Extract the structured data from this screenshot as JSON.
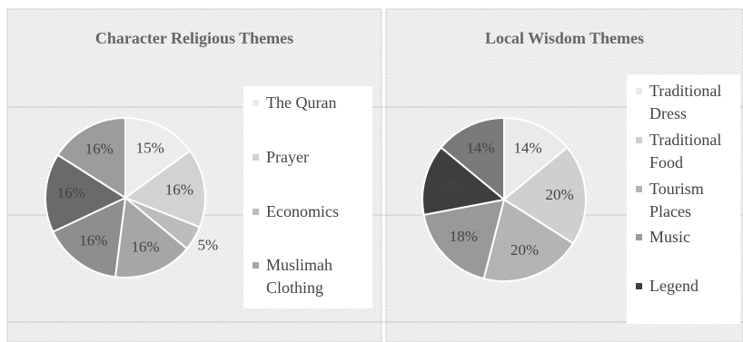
{
  "chart_data": [
    {
      "type": "pie",
      "title": "Character Religious Themes",
      "categories": [
        "The Quran",
        "Prayer",
        "Economics",
        "Muslimah Clothing",
        null,
        null,
        null
      ],
      "values": [
        15,
        16,
        5,
        16,
        16,
        16,
        16
      ],
      "value_labels": [
        "15%",
        "16%",
        "5%",
        "16%",
        "16%",
        "16%",
        "16%"
      ],
      "colors": [
        "#ececec",
        "#d2d2d2",
        "#bcbcbc",
        "#a6a6a6",
        "#8e8e8e",
        "#6a6a6a",
        "#9c9c9c"
      ]
    },
    {
      "type": "pie",
      "title": "Local Wisdom Themes",
      "categories": [
        "Traditional Dress",
        "Traditional Food",
        "Tourism Places",
        "Music",
        "Legend",
        null
      ],
      "values": [
        14,
        20,
        20,
        18,
        14,
        14
      ],
      "value_labels": [
        "14%",
        "20%",
        "20%",
        "18%",
        "14%",
        "14%"
      ],
      "colors": [
        "#eaeaea",
        "#cfcfcf",
        "#b4b4b4",
        "#999999",
        "#3e3e3e",
        "#7a7a7a"
      ]
    }
  ]
}
